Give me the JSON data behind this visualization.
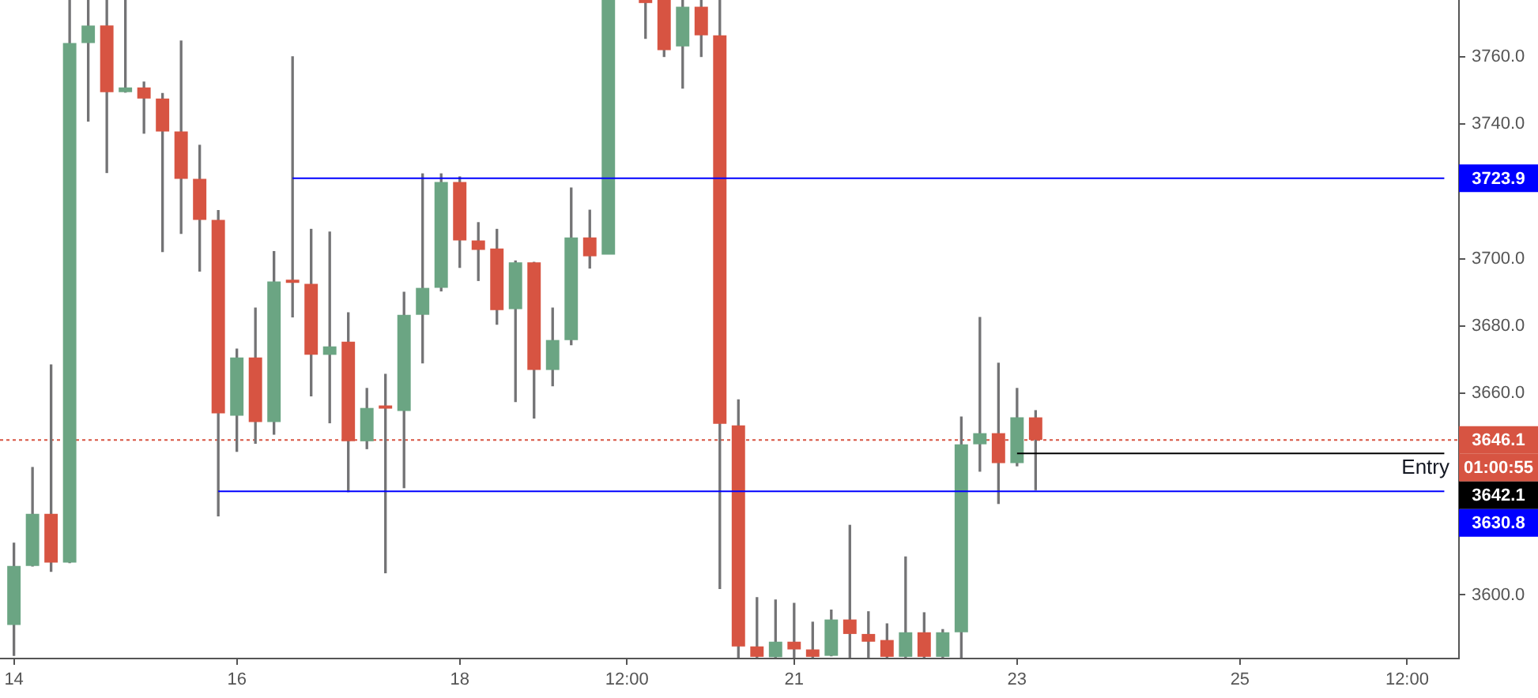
{
  "chart_data": {
    "type": "candlestick",
    "categories": [
      "14",
      null,
      null,
      null,
      null,
      null,
      null,
      null,
      null,
      null,
      null,
      null,
      "16",
      null,
      null,
      null,
      null,
      null,
      null,
      null,
      null,
      null,
      null,
      null,
      "18",
      null,
      null,
      null,
      null,
      null,
      null,
      null,
      null,
      "12:00",
      null,
      null,
      null,
      null,
      null,
      null,
      null,
      null,
      "21",
      null,
      null,
      null,
      null,
      null,
      null,
      null,
      null,
      null,
      null,
      null,
      "23",
      null,
      null,
      null,
      null,
      null,
      null,
      null,
      null,
      null,
      null,
      null,
      "25",
      null,
      null,
      null,
      null,
      null,
      null,
      null,
      null,
      "12:00",
      null,
      null
    ],
    "ohlc": [
      [
        3591.1,
        3615.4,
        3582.0,
        3608.6
      ],
      [
        3608.6,
        3637.9,
        3608.6,
        3624.1
      ],
      [
        3624.1,
        3668.4,
        3607.0,
        3609.6
      ],
      [
        3609.6,
        3776.9,
        3609.6,
        3764.1
      ],
      [
        3764.1,
        3776.9,
        3740.9,
        3769.3
      ],
      [
        3769.3,
        3776.9,
        3725.6,
        3749.5
      ],
      [
        3749.5,
        3776.9,
        3749.5,
        3750.9
      ],
      [
        3750.9,
        3752.5,
        3737.3,
        3747.6
      ],
      [
        3747.6,
        3749.1,
        3702.1,
        3737.8
      ],
      [
        3737.8,
        3764.7,
        3707.5,
        3723.7
      ],
      [
        3723.7,
        3733.7,
        3696.3,
        3711.5
      ],
      [
        3711.5,
        3714.3,
        3623.5,
        3654.0
      ],
      [
        3653.3,
        3673.1,
        3642.7,
        3670.6
      ],
      [
        3670.6,
        3685.3,
        3645.1,
        3651.4
      ],
      [
        3651.4,
        3702.1,
        3647.8,
        3693.2
      ],
      [
        3693.0,
        3760.0,
        3682.7,
        3692.8
      ],
      [
        3692.5,
        3708.7,
        3659.2,
        3671.4
      ],
      [
        3671.4,
        3707.9,
        3651.2,
        3673.9
      ],
      [
        3675.3,
        3683.9,
        3630.7,
        3645.7
      ],
      [
        3645.7,
        3661.4,
        3643.5,
        3655.6
      ],
      [
        3655.6,
        3665.6,
        3606.6,
        3655.4
      ],
      [
        3654.7,
        3690.0,
        3631.9,
        3683.3
      ],
      [
        3683.3,
        3725.2,
        3669.0,
        3691.3
      ],
      [
        3691.3,
        3725.2,
        3690.4,
        3722.8
      ],
      [
        3722.8,
        3724.3,
        3697.4,
        3705.4
      ],
      [
        3705.4,
        3710.7,
        3693.5,
        3702.6
      ],
      [
        3703.0,
        3708.7,
        3680.5,
        3684.7
      ],
      [
        3685.0,
        3699.3,
        3657.5,
        3698.9
      ],
      [
        3698.9,
        3698.9,
        3652.6,
        3666.9
      ],
      [
        3666.9,
        3685.3,
        3662.2,
        3675.8
      ],
      [
        3675.8,
        3721.0,
        3674.4,
        3706.3
      ],
      [
        3706.3,
        3714.4,
        3697.2,
        3700.7
      ],
      [
        3701.2,
        3776.9,
        3701.2,
        3776.9
      ],
      null,
      [
        3776.9,
        3776.9,
        3765.5,
        3776.0
      ],
      [
        3776.9,
        3776.9,
        3760.1,
        3762.0
      ],
      [
        3763.1,
        3776.9,
        3750.7,
        3774.9
      ],
      [
        3774.9,
        3776.9,
        3760.1,
        3766.4
      ],
      [
        3766.4,
        3776.9,
        3601.9,
        3650.9
      ],
      [
        3650.4,
        3658.0,
        3581.5,
        3584.7
      ],
      [
        3584.7,
        3599.2,
        3581.5,
        3581.6
      ],
      [
        3581.5,
        3598.5,
        3581.5,
        3586.1
      ],
      [
        3586.1,
        3597.5,
        3581.5,
        3583.8
      ],
      [
        3583.8,
        3591.9,
        3581.5,
        3581.6
      ],
      [
        3581.9,
        3595.5,
        3581.9,
        3592.7
      ],
      [
        3592.7,
        3620.7,
        3581.5,
        3588.4
      ],
      [
        3588.4,
        3595.0,
        3581.5,
        3586.1
      ],
      [
        3586.6,
        3591.4,
        3581.5,
        3581.6
      ],
      [
        3581.6,
        3611.3,
        3581.5,
        3588.9
      ],
      [
        3588.9,
        3594.7,
        3581.5,
        3581.6
      ],
      [
        3581.6,
        3589.7,
        3581.5,
        3588.9
      ],
      [
        3588.9,
        3652.9,
        3581.5,
        3644.8
      ],
      [
        3644.8,
        3682.5,
        3636.8,
        3648.1
      ],
      [
        3648.1,
        3668.9,
        3627.2,
        3639.2
      ],
      [
        3639.2,
        3661.4,
        3638.4,
        3652.8
      ],
      [
        3652.8,
        3654.8,
        3631.3,
        3646.1
      ],
      null,
      null,
      null,
      null,
      null,
      null,
      null,
      null,
      null,
      null,
      null,
      null,
      null,
      null,
      null,
      null,
      null,
      null,
      null,
      null,
      null,
      null
    ],
    "colors": [
      "#6ba583",
      "#6ba583",
      "#d75442",
      "#6ba583",
      "#6ba583",
      "#d75442",
      "#6ba583",
      "#d75442",
      "#d75442",
      "#d75442",
      "#d75442",
      "#d75442",
      "#6ba583",
      "#d75442",
      "#6ba583",
      "#d75442",
      "#d75442",
      "#6ba583",
      "#d75442",
      "#6ba583",
      "#d75442",
      "#6ba583",
      "#6ba583",
      "#6ba583",
      "#d75442",
      "#d75442",
      "#d75442",
      "#6ba583",
      "#d75442",
      "#6ba583",
      "#6ba583",
      "#d75442",
      "#6ba583",
      null,
      "#d75442",
      "#d75442",
      "#6ba583",
      "#d75442",
      "#d75442",
      "#d75442",
      "#d75442",
      "#6ba583",
      "#d75442",
      "#d75442",
      "#6ba583",
      "#d75442",
      "#d75442",
      "#d75442",
      "#6ba583",
      "#d75442",
      "#6ba583",
      "#6ba583",
      "#6ba583",
      "#d75442",
      "#6ba583",
      "#d75442",
      null,
      null,
      null,
      null,
      null,
      null,
      null,
      null,
      null,
      null,
      null,
      null,
      null,
      null,
      null,
      null,
      null,
      null,
      null,
      null,
      null,
      null
    ],
    "series": [
      {
        "type": "line",
        "color": "#0000ff",
        "values": [
          null,
          null,
          null,
          null,
          null,
          null,
          null,
          null,
          null,
          null,
          null,
          null,
          null,
          null,
          null,
          3723.9,
          3723.9,
          3723.9,
          3723.9,
          3723.9,
          3723.9,
          3723.9,
          3723.9,
          3723.9,
          3723.9,
          3723.9,
          3723.9,
          3723.9,
          3723.9,
          3723.9,
          3723.9,
          3723.9,
          3723.9,
          3723.9,
          3723.9,
          3723.9,
          3723.9,
          3723.9,
          3723.9,
          3723.9,
          3723.9,
          3723.9,
          3723.9,
          3723.9,
          3723.9,
          3723.9,
          3723.9,
          3723.9,
          3723.9,
          3723.9,
          3723.9,
          3723.9,
          3723.9,
          3723.9,
          3723.9,
          3723.9,
          3723.9,
          3723.9,
          3723.9,
          3723.9,
          3723.9,
          3723.9,
          3723.9,
          3723.9,
          3723.9,
          3723.9,
          3723.9,
          3723.9,
          3723.9,
          3723.9,
          3723.9,
          3723.9,
          3723.9,
          3723.9,
          3723.9,
          3723.9,
          3723.9,
          3723.9
        ],
        "value_labels": [
          null,
          null,
          null,
          null,
          null,
          null,
          null,
          null,
          null,
          null,
          null,
          null,
          null,
          null,
          null,
          null,
          null,
          null,
          null,
          null,
          null,
          null,
          null,
          null,
          null,
          null,
          null,
          null,
          null,
          null,
          null,
          null,
          null,
          null,
          null,
          null,
          null,
          null,
          null,
          null,
          null,
          null,
          null,
          null,
          null,
          null,
          null,
          null,
          null,
          null,
          null,
          null,
          null,
          null,
          null,
          null,
          null,
          null,
          null,
          null,
          null,
          null,
          null,
          null,
          null,
          null,
          null,
          null,
          null,
          null,
          null,
          null,
          null,
          null,
          null,
          null,
          null,
          "3723.9"
        ]
      },
      {
        "type": "line",
        "color": "#0000ff",
        "values": [
          null,
          null,
          null,
          null,
          null,
          null,
          null,
          null,
          null,
          null,
          null,
          3630.8,
          3630.8,
          3630.8,
          3630.8,
          3630.8,
          3630.8,
          3630.8,
          3630.8,
          3630.8,
          3630.8,
          3630.8,
          3630.8,
          3630.8,
          3630.8,
          3630.8,
          3630.8,
          3630.8,
          3630.8,
          3630.8,
          3630.8,
          3630.8,
          3630.8,
          3630.8,
          3630.8,
          3630.8,
          3630.8,
          3630.8,
          3630.8,
          3630.8,
          3630.8,
          3630.8,
          3630.8,
          3630.8,
          3630.8,
          3630.8,
          3630.8,
          3630.8,
          3630.8,
          3630.8,
          3630.8,
          3630.8,
          3630.8,
          3630.8,
          3630.8,
          3630.8,
          3630.8,
          3630.8,
          3630.8,
          3630.8,
          3630.8,
          3630.8,
          3630.8,
          3630.8,
          3630.8,
          3630.8,
          3630.8,
          3630.8,
          3630.8,
          3630.8,
          3630.8,
          3630.8,
          3630.8,
          3630.8,
          3630.8,
          3630.8,
          3630.8,
          3630.8
        ],
        "value_labels": [
          null,
          null,
          null,
          null,
          null,
          null,
          null,
          null,
          null,
          null,
          null,
          null,
          null,
          null,
          null,
          null,
          null,
          null,
          null,
          null,
          null,
          null,
          null,
          null,
          null,
          null,
          null,
          null,
          null,
          null,
          null,
          null,
          null,
          null,
          null,
          null,
          null,
          null,
          null,
          null,
          null,
          null,
          null,
          null,
          null,
          null,
          null,
          null,
          null,
          null,
          null,
          null,
          null,
          null,
          null,
          null,
          null,
          null,
          null,
          null,
          null,
          null,
          null,
          null,
          null,
          null,
          null,
          null,
          null,
          null,
          null,
          null,
          null,
          null,
          null,
          null,
          null,
          "3630.8"
        ]
      },
      {
        "type": "line",
        "color": "#000000",
        "values": [
          null,
          null,
          null,
          null,
          null,
          null,
          null,
          null,
          null,
          null,
          null,
          null,
          null,
          null,
          null,
          null,
          null,
          null,
          null,
          null,
          null,
          null,
          null,
          null,
          null,
          null,
          null,
          null,
          null,
          null,
          null,
          null,
          null,
          null,
          null,
          null,
          null,
          null,
          null,
          null,
          null,
          null,
          null,
          null,
          null,
          null,
          null,
          null,
          null,
          null,
          null,
          null,
          null,
          null,
          3642.1,
          3642.1,
          3642.1,
          3642.1,
          3642.1,
          3642.1,
          3642.1,
          3642.1,
          3642.1,
          3642.1,
          3642.1,
          3642.1,
          3642.1,
          3642.1,
          3642.1,
          3642.1,
          3642.1,
          3642.1,
          3642.1,
          3642.1,
          3642.1,
          3642.1,
          3642.1,
          3642.1
        ],
        "value_labels": [
          null,
          null,
          null,
          null,
          null,
          null,
          null,
          null,
          null,
          null,
          null,
          null,
          null,
          null,
          null,
          null,
          null,
          null,
          null,
          null,
          null,
          null,
          null,
          null,
          null,
          null,
          null,
          null,
          null,
          null,
          null,
          null,
          null,
          null,
          null,
          null,
          null,
          null,
          null,
          null,
          null,
          null,
          null,
          null,
          null,
          null,
          null,
          null,
          null,
          null,
          null,
          null,
          null,
          null,
          null,
          null,
          null,
          null,
          null,
          null,
          null,
          null,
          null,
          null,
          null,
          null,
          null,
          null,
          null,
          null,
          null,
          null,
          null,
          null,
          null,
          null,
          null,
          "3642.1"
        ]
      }
    ],
    "ref_lines": [
      {
        "axis": "y",
        "value": 3646.1,
        "label": "3646.1",
        "color": "#d75442",
        "line_style": "dotted"
      }
    ],
    "annotations": [
      "01:00:55",
      {
        "text": "Entry",
        "y": 3642.1
      }
    ],
    "ylim": [
      3581.1,
      3776.9
    ],
    "yticks": [
      {
        "value": 3600,
        "label": "3600.0"
      },
      {
        "value": 3660,
        "label": "3660.0"
      },
      {
        "value": 3680,
        "label": "3680.0"
      },
      {
        "value": 3700,
        "label": "3700.0"
      },
      {
        "value": 3720,
        "label": null
      },
      {
        "value": 3740,
        "label": "3740.0"
      },
      {
        "value": 3760,
        "label": "3760.0"
      }
    ]
  }
}
